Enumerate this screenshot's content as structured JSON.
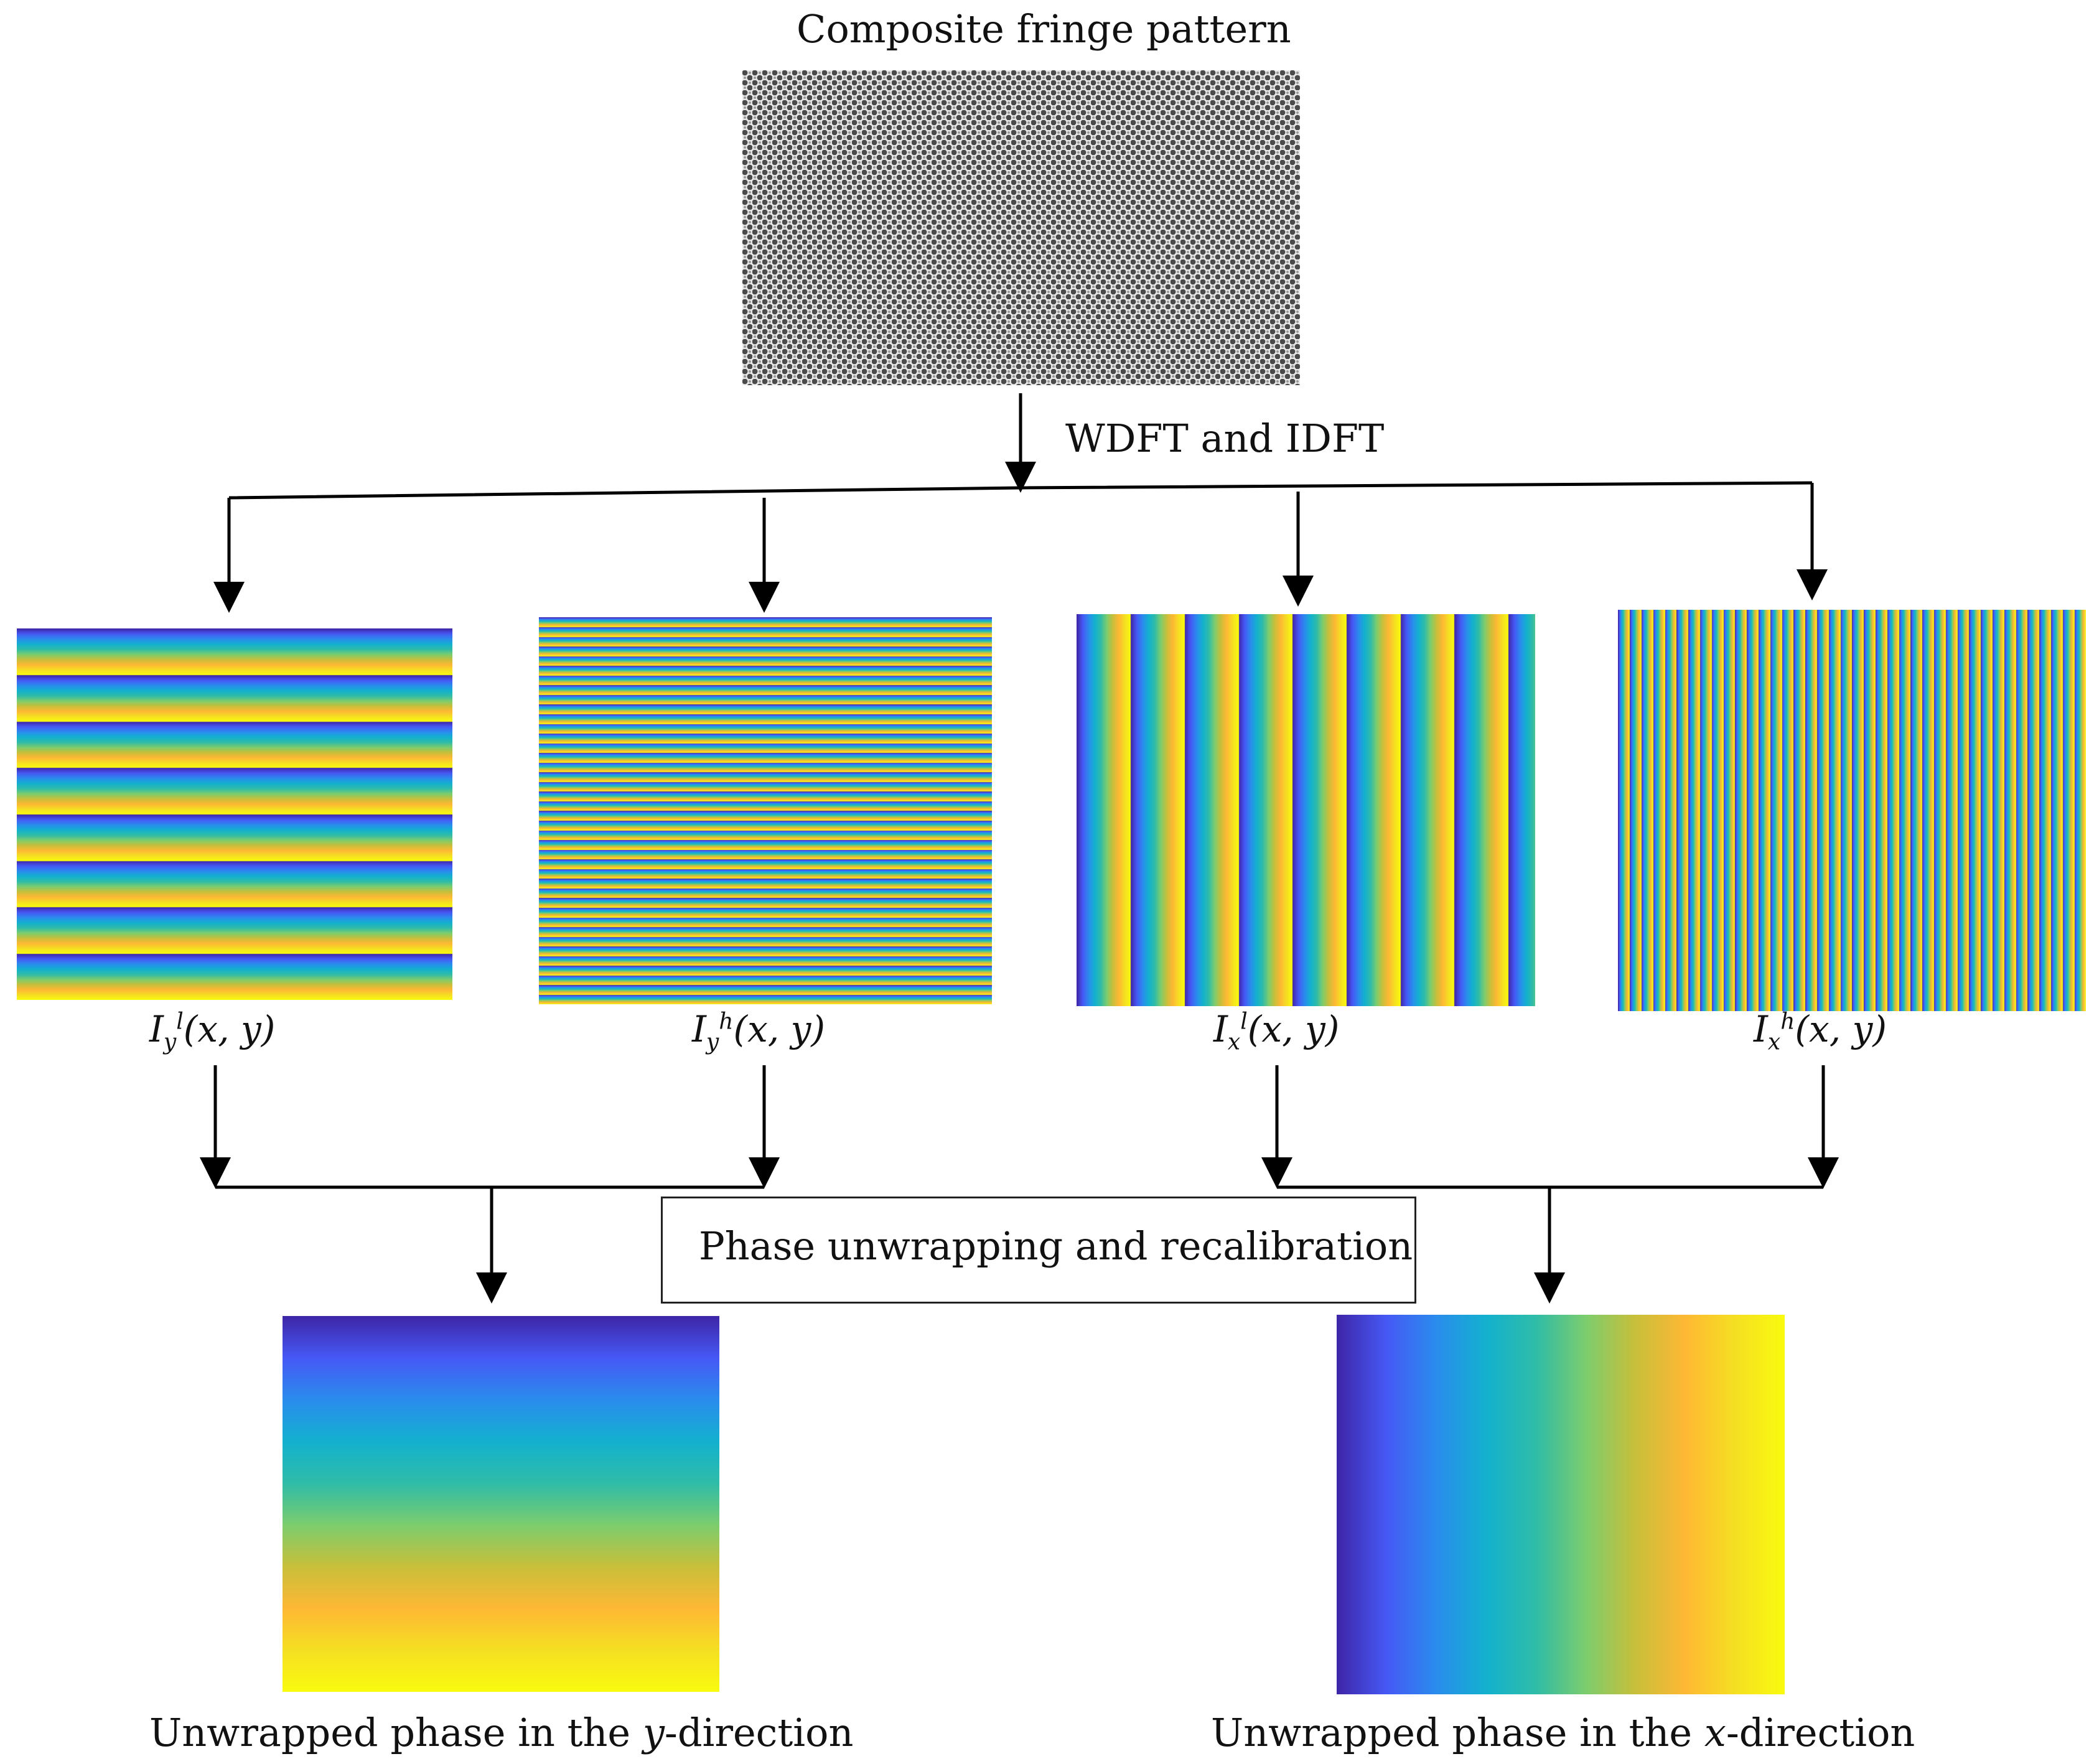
{
  "title": "Composite fringe pattern",
  "step_label": "WDFT and IDFT",
  "components": [
    {
      "symbol": "I",
      "sub": "y",
      "sup": "l",
      "args": "(x, y)"
    },
    {
      "symbol": "I",
      "sub": "y",
      "sup": "h",
      "args": "(x, y)"
    },
    {
      "symbol": "I",
      "sub": "x",
      "sup": "l",
      "args": "(x, y)"
    },
    {
      "symbol": "I",
      "sub": "x",
      "sup": "h",
      "args": "(x, y)"
    }
  ],
  "process_box": "Phase unwrapping and recalibration",
  "outputs": [
    {
      "caption_prefix": "Unwrapped phase in the ",
      "axis": "y",
      "caption_suffix": "-direction"
    },
    {
      "caption_prefix": "Unwrapped phase in the ",
      "axis": "x",
      "caption_suffix": "-direction"
    }
  ],
  "colors": {
    "parula_stops": [
      "#3e26a8",
      "#4659f5",
      "#2a8ced",
      "#13b1cf",
      "#2fbca8",
      "#7ccd6e",
      "#c8bf3a",
      "#feb834",
      "#f5df22",
      "#f9fb0e"
    ],
    "line": "#000000",
    "checker_dark": "#4a4a4a",
    "checker_light": "#e8e8e8"
  }
}
